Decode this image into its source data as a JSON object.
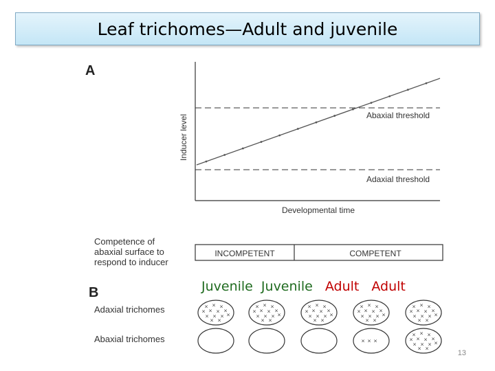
{
  "slide": {
    "title": "Leaf trichomes—Adult and juvenile",
    "number": "13"
  },
  "panel_a": {
    "label": "A",
    "ylabel": "Inducer level",
    "xlabel": "Developmental time",
    "abaxial_threshold_label": "Abaxial threshold",
    "adaxial_threshold_label": "Adaxial threshold"
  },
  "competence": {
    "label_lines": [
      "Competence of",
      "abaxial surface to",
      "respond to inducer"
    ],
    "incompetent": "INCOMPETENT",
    "competent": "COMPETENT"
  },
  "panel_b": {
    "label": "B",
    "phase_labels": [
      {
        "text": "Juvenile",
        "color": "#1f6b1f"
      },
      {
        "text": "Juvenile",
        "color": "#1f6b1f"
      },
      {
        "text": "Adult",
        "color": "#c00000"
      },
      {
        "text": "Adult",
        "color": "#c00000"
      }
    ],
    "adaxial_row_label": "Adaxial trichomes",
    "abaxial_row_label": "Abaxial trichomes",
    "leaves": [
      {
        "adaxial": "many",
        "abaxial": "none"
      },
      {
        "adaxial": "many",
        "abaxial": "none"
      },
      {
        "adaxial": "many",
        "abaxial": "none"
      },
      {
        "adaxial": "many",
        "abaxial": "few"
      },
      {
        "adaxial": "many",
        "abaxial": "many"
      }
    ]
  }
}
